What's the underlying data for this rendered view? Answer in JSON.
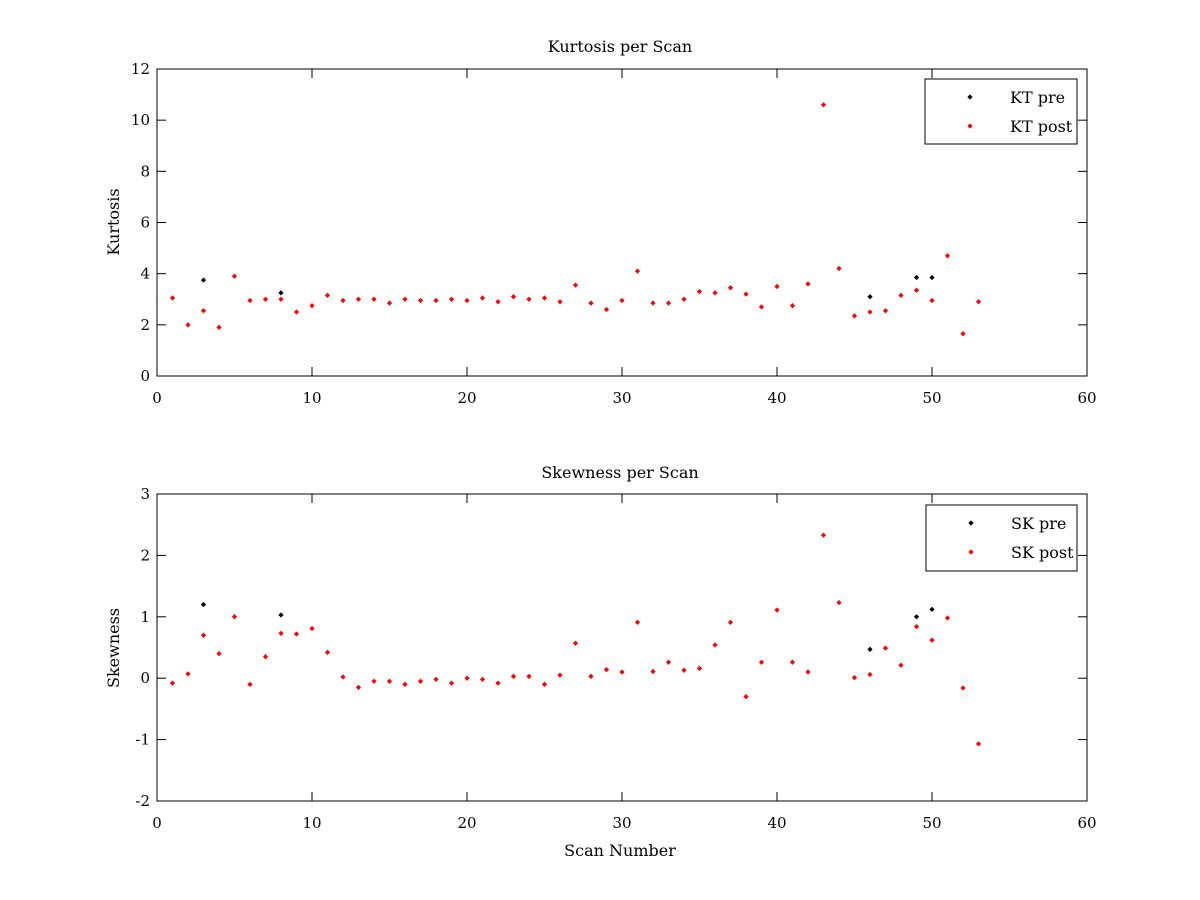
{
  "chart_data": [
    {
      "type": "scatter",
      "title": "Kurtosis per Scan",
      "xlabel": "",
      "ylabel": "Kurtosis",
      "xlim": [
        0,
        60
      ],
      "ylim": [
        0,
        12
      ],
      "xticks": [
        0,
        10,
        20,
        30,
        40,
        50,
        60
      ],
      "yticks": [
        0,
        2,
        4,
        6,
        8,
        10,
        12
      ],
      "grid": false,
      "legend_position": "top-right",
      "series": [
        {
          "name": "KT pre",
          "color": "#000000",
          "points": [
            [
              3,
              3.75
            ],
            [
              8,
              3.25
            ],
            [
              46,
              3.1
            ],
            [
              49,
              3.85
            ],
            [
              50,
              3.85
            ]
          ]
        },
        {
          "name": "KT post",
          "color": "#ff0000",
          "points": [
            [
              1,
              3.05
            ],
            [
              2,
              2.0
            ],
            [
              3,
              2.55
            ],
            [
              4,
              1.9
            ],
            [
              5,
              3.9
            ],
            [
              6,
              2.95
            ],
            [
              7,
              3.0
            ],
            [
              8,
              3.0
            ],
            [
              9,
              2.5
            ],
            [
              10,
              2.75
            ],
            [
              11,
              3.15
            ],
            [
              12,
              2.95
            ],
            [
              13,
              3.0
            ],
            [
              14,
              3.0
            ],
            [
              15,
              2.85
            ],
            [
              16,
              3.0
            ],
            [
              17,
              2.95
            ],
            [
              18,
              2.95
            ],
            [
              19,
              3.0
            ],
            [
              20,
              2.95
            ],
            [
              21,
              3.05
            ],
            [
              22,
              2.9
            ],
            [
              23,
              3.1
            ],
            [
              24,
              3.0
            ],
            [
              25,
              3.05
            ],
            [
              26,
              2.9
            ],
            [
              27,
              3.55
            ],
            [
              28,
              2.85
            ],
            [
              29,
              2.6
            ],
            [
              30,
              2.95
            ],
            [
              31,
              4.1
            ],
            [
              32,
              2.85
            ],
            [
              33,
              2.85
            ],
            [
              34,
              3.0
            ],
            [
              35,
              3.3
            ],
            [
              36,
              3.25
            ],
            [
              37,
              3.45
            ],
            [
              38,
              3.2
            ],
            [
              39,
              2.7
            ],
            [
              40,
              3.5
            ],
            [
              41,
              2.75
            ],
            [
              42,
              3.6
            ],
            [
              43,
              10.6
            ],
            [
              44,
              4.2
            ],
            [
              45,
              2.35
            ],
            [
              46,
              2.5
            ],
            [
              47,
              2.55
            ],
            [
              48,
              3.15
            ],
            [
              49,
              3.35
            ],
            [
              50,
              2.95
            ],
            [
              51,
              4.7
            ],
            [
              52,
              1.65
            ],
            [
              53,
              2.9
            ]
          ]
        }
      ]
    },
    {
      "type": "scatter",
      "title": "Skewness per Scan",
      "xlabel": "Scan Number",
      "ylabel": "Skewness",
      "xlim": [
        0,
        60
      ],
      "ylim": [
        -2,
        3
      ],
      "xticks": [
        0,
        10,
        20,
        30,
        40,
        50,
        60
      ],
      "yticks": [
        -2,
        -1,
        0,
        1,
        2,
        3
      ],
      "grid": false,
      "legend_position": "top-right",
      "series": [
        {
          "name": "SK pre",
          "color": "#000000",
          "points": [
            [
              3,
              1.2
            ],
            [
              8,
              1.03
            ],
            [
              46,
              0.47
            ],
            [
              49,
              1.0
            ],
            [
              50,
              1.12
            ]
          ]
        },
        {
          "name": "SK post",
          "color": "#ff0000",
          "points": [
            [
              1,
              -0.08
            ],
            [
              2,
              0.07
            ],
            [
              3,
              0.7
            ],
            [
              4,
              0.4
            ],
            [
              5,
              1.0
            ],
            [
              6,
              -0.1
            ],
            [
              7,
              0.35
            ],
            [
              8,
              0.73
            ],
            [
              9,
              0.72
            ],
            [
              10,
              0.81
            ],
            [
              11,
              0.42
            ],
            [
              12,
              0.02
            ],
            [
              13,
              -0.15
            ],
            [
              14,
              -0.05
            ],
            [
              15,
              -0.05
            ],
            [
              16,
              -0.1
            ],
            [
              17,
              -0.05
            ],
            [
              18,
              -0.02
            ],
            [
              19,
              -0.08
            ],
            [
              20,
              0.0
            ],
            [
              21,
              -0.02
            ],
            [
              22,
              -0.08
            ],
            [
              23,
              0.03
            ],
            [
              24,
              0.03
            ],
            [
              25,
              -0.1
            ],
            [
              26,
              0.05
            ],
            [
              27,
              0.57
            ],
            [
              28,
              0.03
            ],
            [
              29,
              0.14
            ],
            [
              30,
              0.1
            ],
            [
              31,
              0.91
            ],
            [
              32,
              0.11
            ],
            [
              33,
              0.26
            ],
            [
              34,
              0.13
            ],
            [
              35,
              0.16
            ],
            [
              36,
              0.54
            ],
            [
              37,
              0.91
            ],
            [
              38,
              -0.3
            ],
            [
              39,
              0.26
            ],
            [
              40,
              1.11
            ],
            [
              41,
              0.26
            ],
            [
              42,
              0.1
            ],
            [
              43,
              2.33
            ],
            [
              44,
              1.23
            ],
            [
              45,
              0.01
            ],
            [
              46,
              0.06
            ],
            [
              47,
              0.49
            ],
            [
              48,
              0.21
            ],
            [
              49,
              0.84
            ],
            [
              50,
              0.62
            ],
            [
              51,
              0.98
            ],
            [
              52,
              -0.16
            ],
            [
              53,
              -1.07
            ]
          ]
        }
      ]
    }
  ]
}
